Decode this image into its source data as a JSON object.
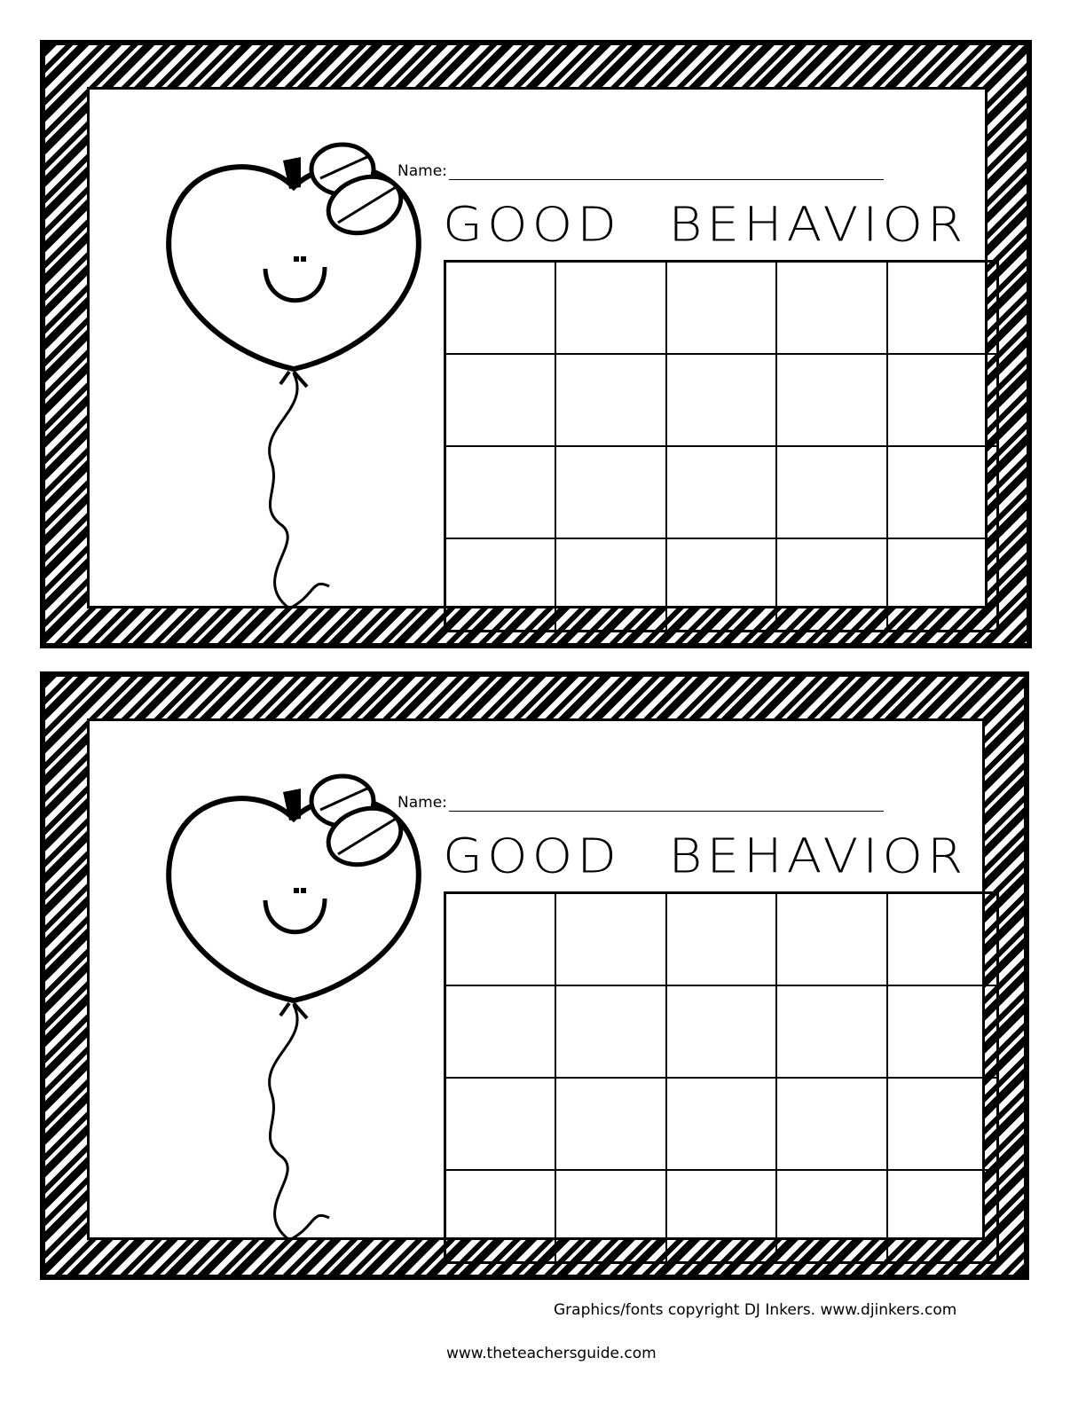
{
  "cards": [
    {
      "name_label": "Name:",
      "title": "GOOD BEHAVIOR",
      "grid": {
        "rows": 4,
        "cols": 5
      }
    },
    {
      "name_label": "Name:",
      "title": "GOOD BEHAVIOR",
      "grid": {
        "rows": 4,
        "cols": 5
      }
    }
  ],
  "illustration": "smiling-apple-balloon",
  "footer": {
    "copyright": "Graphics/fonts copyright DJ Inkers. www.djinkers.com",
    "site": "www.theteachersguide.com"
  }
}
